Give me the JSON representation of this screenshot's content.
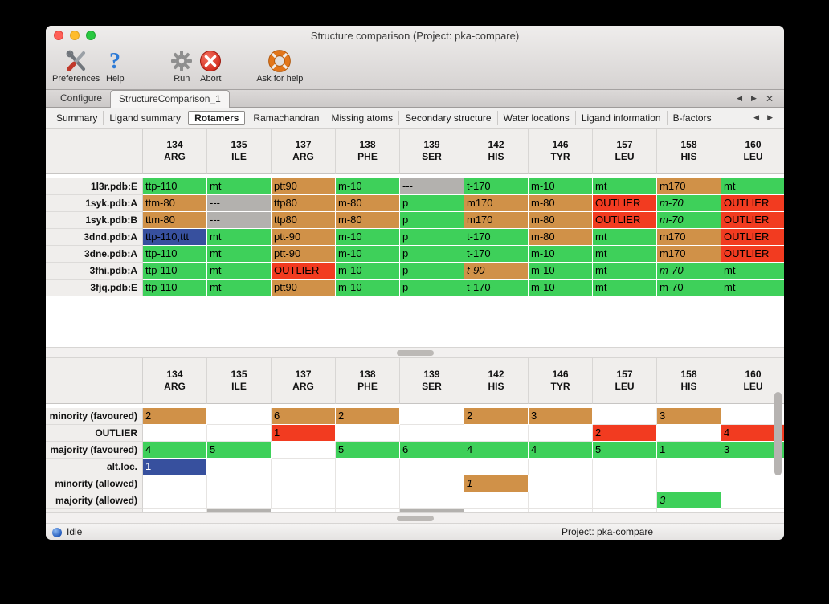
{
  "window": {
    "title": "Structure comparison (Project: pka-compare)"
  },
  "toolbar": {
    "items": [
      {
        "label": "Preferences"
      },
      {
        "label": "Help"
      },
      {
        "label": "Run"
      },
      {
        "label": "Abort"
      },
      {
        "label": "Ask for help"
      }
    ]
  },
  "main_tabs": {
    "items": [
      {
        "label": "Configure",
        "active": false
      },
      {
        "label": "StructureComparison_1",
        "active": true
      }
    ]
  },
  "sub_tabs": {
    "items": [
      "Summary",
      "Ligand summary",
      "Rotamers",
      "Ramachandran",
      "Missing atoms",
      "Secondary structure",
      "Water locations",
      "Ligand information",
      "B-factors"
    ],
    "active": "Rotamers"
  },
  "nav": {
    "prev": "◀",
    "next": "▶",
    "close": "✕"
  },
  "columns": [
    {
      "num": "134",
      "res": "ARG"
    },
    {
      "num": "135",
      "res": "ILE"
    },
    {
      "num": "137",
      "res": "ARG"
    },
    {
      "num": "138",
      "res": "PHE"
    },
    {
      "num": "139",
      "res": "SER"
    },
    {
      "num": "142",
      "res": "HIS"
    },
    {
      "num": "146",
      "res": "TYR"
    },
    {
      "num": "157",
      "res": "LEU"
    },
    {
      "num": "158",
      "res": "HIS"
    },
    {
      "num": "160",
      "res": "LEU"
    }
  ],
  "colors": {
    "green": "#3ed05a",
    "tan": "#d09148",
    "red": "#f23b20",
    "gray": "#b3b1ae",
    "blue": "#37509e"
  },
  "structures_table": {
    "rows": [
      {
        "label": "1l3r.pdb:E",
        "cells": [
          {
            "t": "ttp-110",
            "c": "green"
          },
          {
            "t": "mt",
            "c": "green"
          },
          {
            "t": "ptt90",
            "c": "tan"
          },
          {
            "t": "m-10",
            "c": "green"
          },
          {
            "t": "---",
            "c": "gray"
          },
          {
            "t": "t-170",
            "c": "green"
          },
          {
            "t": "m-10",
            "c": "green"
          },
          {
            "t": "mt",
            "c": "green"
          },
          {
            "t": "m170",
            "c": "tan"
          },
          {
            "t": "mt",
            "c": "green"
          }
        ]
      },
      {
        "label": "1syk.pdb:A",
        "cells": [
          {
            "t": "ttm-80",
            "c": "tan"
          },
          {
            "t": "---",
            "c": "gray"
          },
          {
            "t": "ttp80",
            "c": "tan"
          },
          {
            "t": "m-80",
            "c": "tan"
          },
          {
            "t": "p",
            "c": "green"
          },
          {
            "t": "m170",
            "c": "tan"
          },
          {
            "t": "m-80",
            "c": "tan"
          },
          {
            "t": "OUTLIER",
            "c": "red"
          },
          {
            "t": "m-70",
            "c": "green",
            "i": true
          },
          {
            "t": "OUTLIER",
            "c": "red"
          }
        ]
      },
      {
        "label": "1syk.pdb:B",
        "cells": [
          {
            "t": "ttm-80",
            "c": "tan"
          },
          {
            "t": "---",
            "c": "gray"
          },
          {
            "t": "ttp80",
            "c": "tan"
          },
          {
            "t": "m-80",
            "c": "tan"
          },
          {
            "t": "p",
            "c": "green"
          },
          {
            "t": "m170",
            "c": "tan"
          },
          {
            "t": "m-80",
            "c": "tan"
          },
          {
            "t": "OUTLIER",
            "c": "red"
          },
          {
            "t": "m-70",
            "c": "green",
            "i": true
          },
          {
            "t": "OUTLIER",
            "c": "red"
          }
        ]
      },
      {
        "label": "3dnd.pdb:A",
        "cells": [
          {
            "t": "ttp-110,ttt",
            "c": "blue"
          },
          {
            "t": "mt",
            "c": "green"
          },
          {
            "t": "ptt-90",
            "c": "tan"
          },
          {
            "t": "m-10",
            "c": "green"
          },
          {
            "t": "p",
            "c": "green"
          },
          {
            "t": "t-170",
            "c": "green"
          },
          {
            "t": "m-80",
            "c": "tan"
          },
          {
            "t": "mt",
            "c": "green"
          },
          {
            "t": "m170",
            "c": "tan"
          },
          {
            "t": "OUTLIER",
            "c": "red"
          }
        ]
      },
      {
        "label": "3dne.pdb:A",
        "cells": [
          {
            "t": "ttp-110",
            "c": "green"
          },
          {
            "t": "mt",
            "c": "green"
          },
          {
            "t": "ptt-90",
            "c": "tan"
          },
          {
            "t": "m-10",
            "c": "green"
          },
          {
            "t": "p",
            "c": "green"
          },
          {
            "t": "t-170",
            "c": "green"
          },
          {
            "t": "m-10",
            "c": "green"
          },
          {
            "t": "mt",
            "c": "green"
          },
          {
            "t": "m170",
            "c": "tan"
          },
          {
            "t": "OUTLIER",
            "c": "red"
          }
        ]
      },
      {
        "label": "3fhi.pdb:A",
        "cells": [
          {
            "t": "ttp-110",
            "c": "green"
          },
          {
            "t": "mt",
            "c": "green"
          },
          {
            "t": "OUTLIER",
            "c": "red"
          },
          {
            "t": "m-10",
            "c": "green"
          },
          {
            "t": "p",
            "c": "green"
          },
          {
            "t": "t-90",
            "c": "tan",
            "i": true
          },
          {
            "t": "m-10",
            "c": "green"
          },
          {
            "t": "mt",
            "c": "green"
          },
          {
            "t": "m-70",
            "c": "green",
            "i": true
          },
          {
            "t": "mt",
            "c": "green"
          }
        ]
      },
      {
        "label": "3fjq.pdb:E",
        "cells": [
          {
            "t": "ttp-110",
            "c": "green"
          },
          {
            "t": "mt",
            "c": "green"
          },
          {
            "t": "ptt90",
            "c": "tan"
          },
          {
            "t": "m-10",
            "c": "green"
          },
          {
            "t": "p",
            "c": "green"
          },
          {
            "t": "t-170",
            "c": "green"
          },
          {
            "t": "m-10",
            "c": "green"
          },
          {
            "t": "mt",
            "c": "green"
          },
          {
            "t": "m-70",
            "c": "green"
          },
          {
            "t": "mt",
            "c": "green"
          }
        ]
      }
    ]
  },
  "summary_table": {
    "rows": [
      {
        "label": "minority (favoured)",
        "cells": [
          {
            "t": "2",
            "c": "tan"
          },
          {},
          {
            "t": "6",
            "c": "tan"
          },
          {
            "t": "2",
            "c": "tan"
          },
          {},
          {
            "t": "2",
            "c": "tan"
          },
          {
            "t": "3",
            "c": "tan"
          },
          {},
          {
            "t": "3",
            "c": "tan"
          },
          {}
        ]
      },
      {
        "label": "OUTLIER",
        "cells": [
          {},
          {},
          {
            "t": "1",
            "c": "red"
          },
          {},
          {},
          {},
          {},
          {
            "t": "2",
            "c": "red"
          },
          {},
          {
            "t": "4",
            "c": "red"
          }
        ]
      },
      {
        "label": "majority (favoured)",
        "cells": [
          {
            "t": "4",
            "c": "green"
          },
          {
            "t": "5",
            "c": "green"
          },
          {},
          {
            "t": "5",
            "c": "green"
          },
          {
            "t": "6",
            "c": "green"
          },
          {
            "t": "4",
            "c": "green"
          },
          {
            "t": "4",
            "c": "green"
          },
          {
            "t": "5",
            "c": "green"
          },
          {
            "t": "1",
            "c": "green"
          },
          {
            "t": "3",
            "c": "green"
          }
        ]
      },
      {
        "label": "alt.loc.",
        "cells": [
          {
            "t": "1",
            "c": "blue",
            "w": true
          },
          {},
          {},
          {},
          {},
          {},
          {},
          {},
          {},
          {}
        ]
      },
      {
        "label": "minority (allowed)",
        "cells": [
          {},
          {},
          {},
          {},
          {},
          {
            "t": "1",
            "c": "tan",
            "i": true
          },
          {},
          {},
          {},
          {}
        ]
      },
      {
        "label": "majority (allowed)",
        "cells": [
          {},
          {},
          {},
          {},
          {},
          {},
          {},
          {},
          {
            "t": "3",
            "c": "green",
            "i": true
          },
          {}
        ]
      }
    ],
    "partial_row": {
      "cells": [
        {},
        {
          "c": "gray"
        },
        {},
        {},
        {
          "c": "gray"
        },
        {},
        {},
        {},
        {},
        {}
      ]
    }
  },
  "status": {
    "left": "Idle",
    "right": "Project: pka-compare"
  }
}
